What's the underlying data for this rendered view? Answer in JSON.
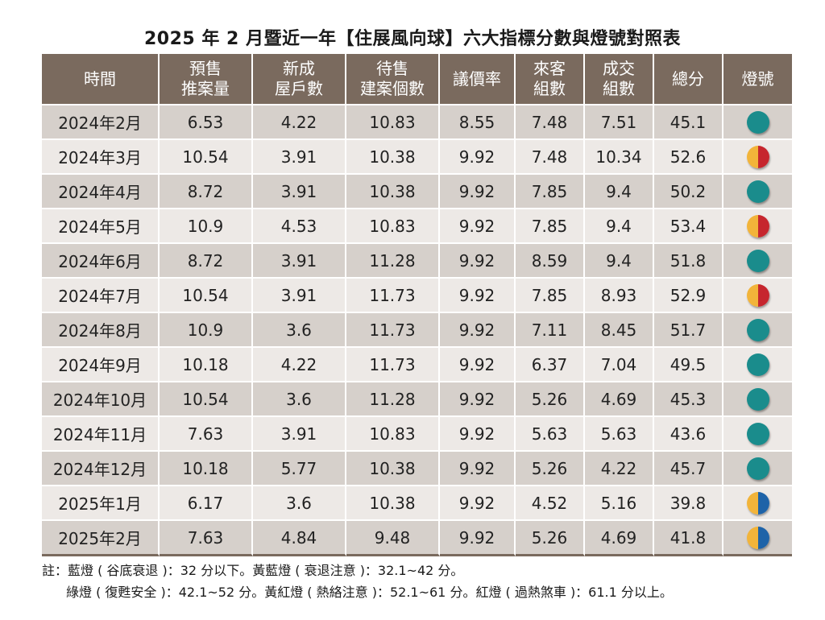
{
  "title": "2025 年 2 月暨近一年【住展風向球】六大指標分數與燈號對照表",
  "headers": [
    {
      "l1": "時間",
      "l2": ""
    },
    {
      "l1": "預售",
      "l2": "推案量"
    },
    {
      "l1": "新成",
      "l2": "屋戶數"
    },
    {
      "l1": "待售",
      "l2": "建案個數"
    },
    {
      "l1": "議價率",
      "l2": ""
    },
    {
      "l1": "來客",
      "l2": "組數"
    },
    {
      "l1": "成交",
      "l2": "組數"
    },
    {
      "l1": "總分",
      "l2": ""
    },
    {
      "l1": "燈號",
      "l2": ""
    }
  ],
  "rows": [
    {
      "time": "2024年2月",
      "presale": "6.53",
      "newhouse": "4.22",
      "pending": "10.83",
      "bargain": "8.55",
      "visitors": "7.48",
      "deals": "7.51",
      "total": "45.1",
      "light": "green"
    },
    {
      "time": "2024年3月",
      "presale": "10.54",
      "newhouse": "3.91",
      "pending": "10.38",
      "bargain": "9.92",
      "visitors": "7.48",
      "deals": "10.34",
      "total": "52.6",
      "light": "yellow-red"
    },
    {
      "time": "2024年4月",
      "presale": "8.72",
      "newhouse": "3.91",
      "pending": "10.38",
      "bargain": "9.92",
      "visitors": "7.85",
      "deals": "9.4",
      "total": "50.2",
      "light": "green"
    },
    {
      "time": "2024年5月",
      "presale": "10.9",
      "newhouse": "4.53",
      "pending": "10.83",
      "bargain": "9.92",
      "visitors": "7.85",
      "deals": "9.4",
      "total": "53.4",
      "light": "yellow-red"
    },
    {
      "time": "2024年6月",
      "presale": "8.72",
      "newhouse": "3.91",
      "pending": "11.28",
      "bargain": "9.92",
      "visitors": "8.59",
      "deals": "9.4",
      "total": "51.8",
      "light": "green"
    },
    {
      "time": "2024年7月",
      "presale": "10.54",
      "newhouse": "3.91",
      "pending": "11.73",
      "bargain": "9.92",
      "visitors": "7.85",
      "deals": "8.93",
      "total": "52.9",
      "light": "yellow-red"
    },
    {
      "time": "2024年8月",
      "presale": "10.9",
      "newhouse": "3.6",
      "pending": "11.73",
      "bargain": "9.92",
      "visitors": "7.11",
      "deals": "8.45",
      "total": "51.7",
      "light": "green"
    },
    {
      "time": "2024年9月",
      "presale": "10.18",
      "newhouse": "4.22",
      "pending": "11.73",
      "bargain": "9.92",
      "visitors": "6.37",
      "deals": "7.04",
      "total": "49.5",
      "light": "green"
    },
    {
      "time": "2024年10月",
      "presale": "10.54",
      "newhouse": "3.6",
      "pending": "11.28",
      "bargain": "9.92",
      "visitors": "5.26",
      "deals": "4.69",
      "total": "45.3",
      "light": "green"
    },
    {
      "time": "2024年11月",
      "presale": "7.63",
      "newhouse": "3.91",
      "pending": "10.83",
      "bargain": "9.92",
      "visitors": "5.63",
      "deals": "5.63",
      "total": "43.6",
      "light": "green"
    },
    {
      "time": "2024年12月",
      "presale": "10.18",
      "newhouse": "5.77",
      "pending": "10.38",
      "bargain": "9.92",
      "visitors": "5.26",
      "deals": "4.22",
      "total": "45.7",
      "light": "green"
    },
    {
      "time": "2025年1月",
      "presale": "6.17",
      "newhouse": "3.6",
      "pending": "10.38",
      "bargain": "9.92",
      "visitors": "4.52",
      "deals": "5.16",
      "total": "39.8",
      "light": "yellow-blue"
    },
    {
      "time": "2025年2月",
      "presale": "7.63",
      "newhouse": "4.84",
      "pending": "9.48",
      "bargain": "9.92",
      "visitors": "5.26",
      "deals": "4.69",
      "total": "41.8",
      "light": "yellow-blue"
    }
  ],
  "notes": {
    "line1": "註：藍燈 ( 谷底衰退 )：32 分以下。黃藍燈 ( 衰退注意 )：32.1~42 分。",
    "line2": "綠燈 ( 復甦安全 )：42.1~52 分。黃紅燈 ( 熱絡注意 )：52.1~61 分。紅燈 ( 過熱煞車 )：61.1 分以上。"
  },
  "colors": {
    "header": "#7a6a5e",
    "row_dark": "#d6d0cb",
    "row_light": "#ede9e6",
    "green_light": "#1a8c8c",
    "yellow": "#f2b43a",
    "red": "#c6262e",
    "blue": "#1e63a8"
  }
}
